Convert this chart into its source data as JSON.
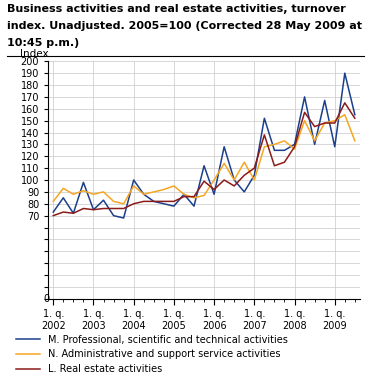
{
  "title_line1": "Business activities and real estate activities, turnover",
  "title_line2": "index. Unadjusted. 2005=100 (Corrected 28 May 2009 at",
  "title_line3": "10:45 p.m.)",
  "ylabel": "Index",
  "ylim": [
    0,
    200
  ],
  "yticks": [
    0,
    10,
    20,
    30,
    40,
    50,
    60,
    70,
    80,
    90,
    100,
    110,
    120,
    130,
    140,
    150,
    160,
    170,
    180,
    190,
    200
  ],
  "ytick_labels": [
    "",
    "",
    "",
    "",
    "",
    "",
    "",
    "70",
    "80",
    "90",
    "100",
    "110",
    "120",
    "130",
    "140",
    "150",
    "160",
    "170",
    "180",
    "190",
    "200"
  ],
  "series_M": [
    73,
    85,
    72,
    98,
    75,
    83,
    70,
    68,
    100,
    88,
    82,
    80,
    78,
    88,
    78,
    112,
    88,
    128,
    100,
    90,
    104,
    152,
    125,
    125,
    130,
    170,
    130,
    167,
    128,
    190,
    155
  ],
  "series_N": [
    82,
    93,
    88,
    91,
    88,
    90,
    82,
    80,
    95,
    88,
    90,
    92,
    95,
    88,
    85,
    87,
    100,
    114,
    100,
    115,
    100,
    128,
    130,
    133,
    126,
    150,
    133,
    148,
    150,
    155,
    133
  ],
  "series_L": [
    70,
    73,
    72,
    76,
    75,
    76,
    76,
    76,
    80,
    82,
    82,
    82,
    82,
    86,
    86,
    99,
    92,
    100,
    95,
    104,
    110,
    138,
    112,
    115,
    128,
    157,
    145,
    148,
    148,
    165,
    152
  ],
  "color_M": "#1b3f8b",
  "color_N": "#f5a623",
  "color_L": "#8b1a1a",
  "legend_M": "M. Professional, scientific and technical activities",
  "legend_N": "N. Administrative and support service activities",
  "legend_L": "L. Real estate activities",
  "grid_color": "#c8c8c8",
  "n_quarters": 31,
  "year_tick_positions": [
    0,
    4,
    8,
    12,
    16,
    20,
    24,
    28
  ],
  "year_tick_labels": [
    "1. q.\n2002",
    "1. q.\n2003",
    "1. q.\n2004",
    "1. q.\n2005",
    "1. q.\n2006",
    "1. q.\n2007",
    "1. q.\n2008",
    "1. q.\n2009"
  ]
}
